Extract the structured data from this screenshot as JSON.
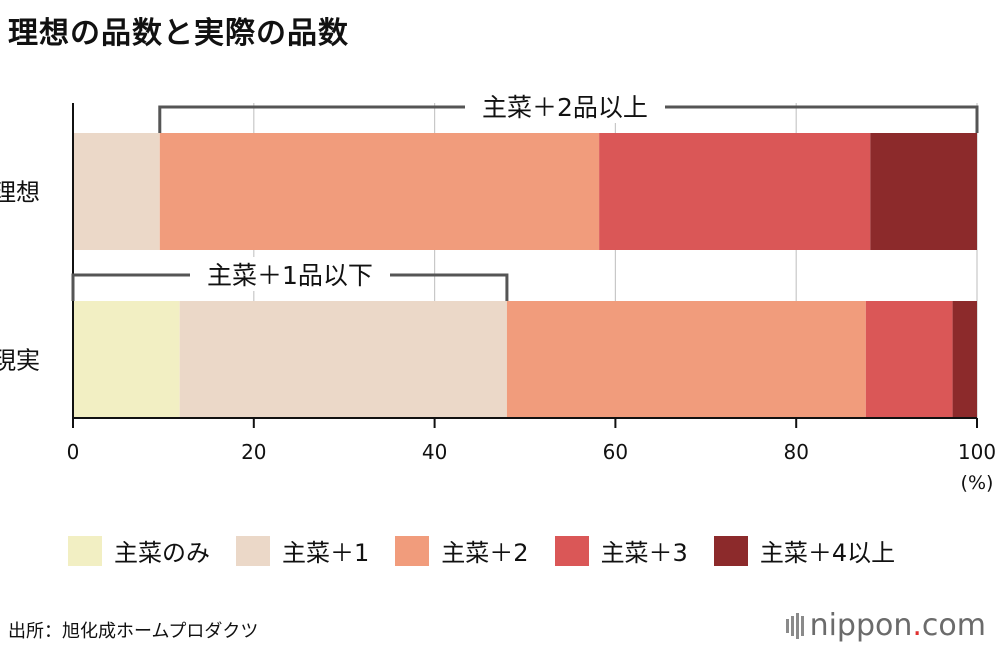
{
  "title": "理想の品数と実際の品数",
  "chart_data": {
    "type": "bar",
    "orientation": "horizontal",
    "stacked": true,
    "categories": [
      "理想",
      "現実"
    ],
    "series": [
      {
        "name": "主菜のみ",
        "color": "#f2efc3",
        "values": [
          0,
          11.8
        ]
      },
      {
        "name": "主菜+1",
        "color": "#ebd8c8",
        "values": [
          9.6,
          36.2
        ]
      },
      {
        "name": "主菜+2",
        "color": "#f19c7c",
        "values": [
          48.6,
          39.7
        ]
      },
      {
        "name": "主菜+3",
        "color": "#da5757",
        "values": [
          30.0,
          9.6
        ]
      },
      {
        "name": "主菜+4以上",
        "color": "#8c2a2b",
        "values": [
          11.8,
          2.7
        ]
      }
    ],
    "xlim": [
      0,
      100
    ],
    "xticks": [
      0,
      20,
      40,
      60,
      80,
      100
    ],
    "xunit": "(%)",
    "grid": true,
    "legend_position": "bottom",
    "annotations": [
      {
        "text": "主菜＋2品以上",
        "category": "理想",
        "from": 9.6,
        "to": 100
      },
      {
        "text": "主菜＋1品以下",
        "category": "現実",
        "from": 0,
        "to": 48
      }
    ]
  },
  "legend": [
    {
      "label": "主菜のみ",
      "color": "#f2efc3"
    },
    {
      "label": "主菜＋1",
      "color": "#ebd8c8"
    },
    {
      "label": "主菜＋2",
      "color": "#f19c7c"
    },
    {
      "label": "主菜＋3",
      "color": "#da5757"
    },
    {
      "label": "主菜＋4以上",
      "color": "#8c2a2b"
    }
  ],
  "source": "出所：旭化成ホームプロダクツ",
  "logo": {
    "name": "nippon",
    "dot": ".",
    "tld": "com"
  }
}
